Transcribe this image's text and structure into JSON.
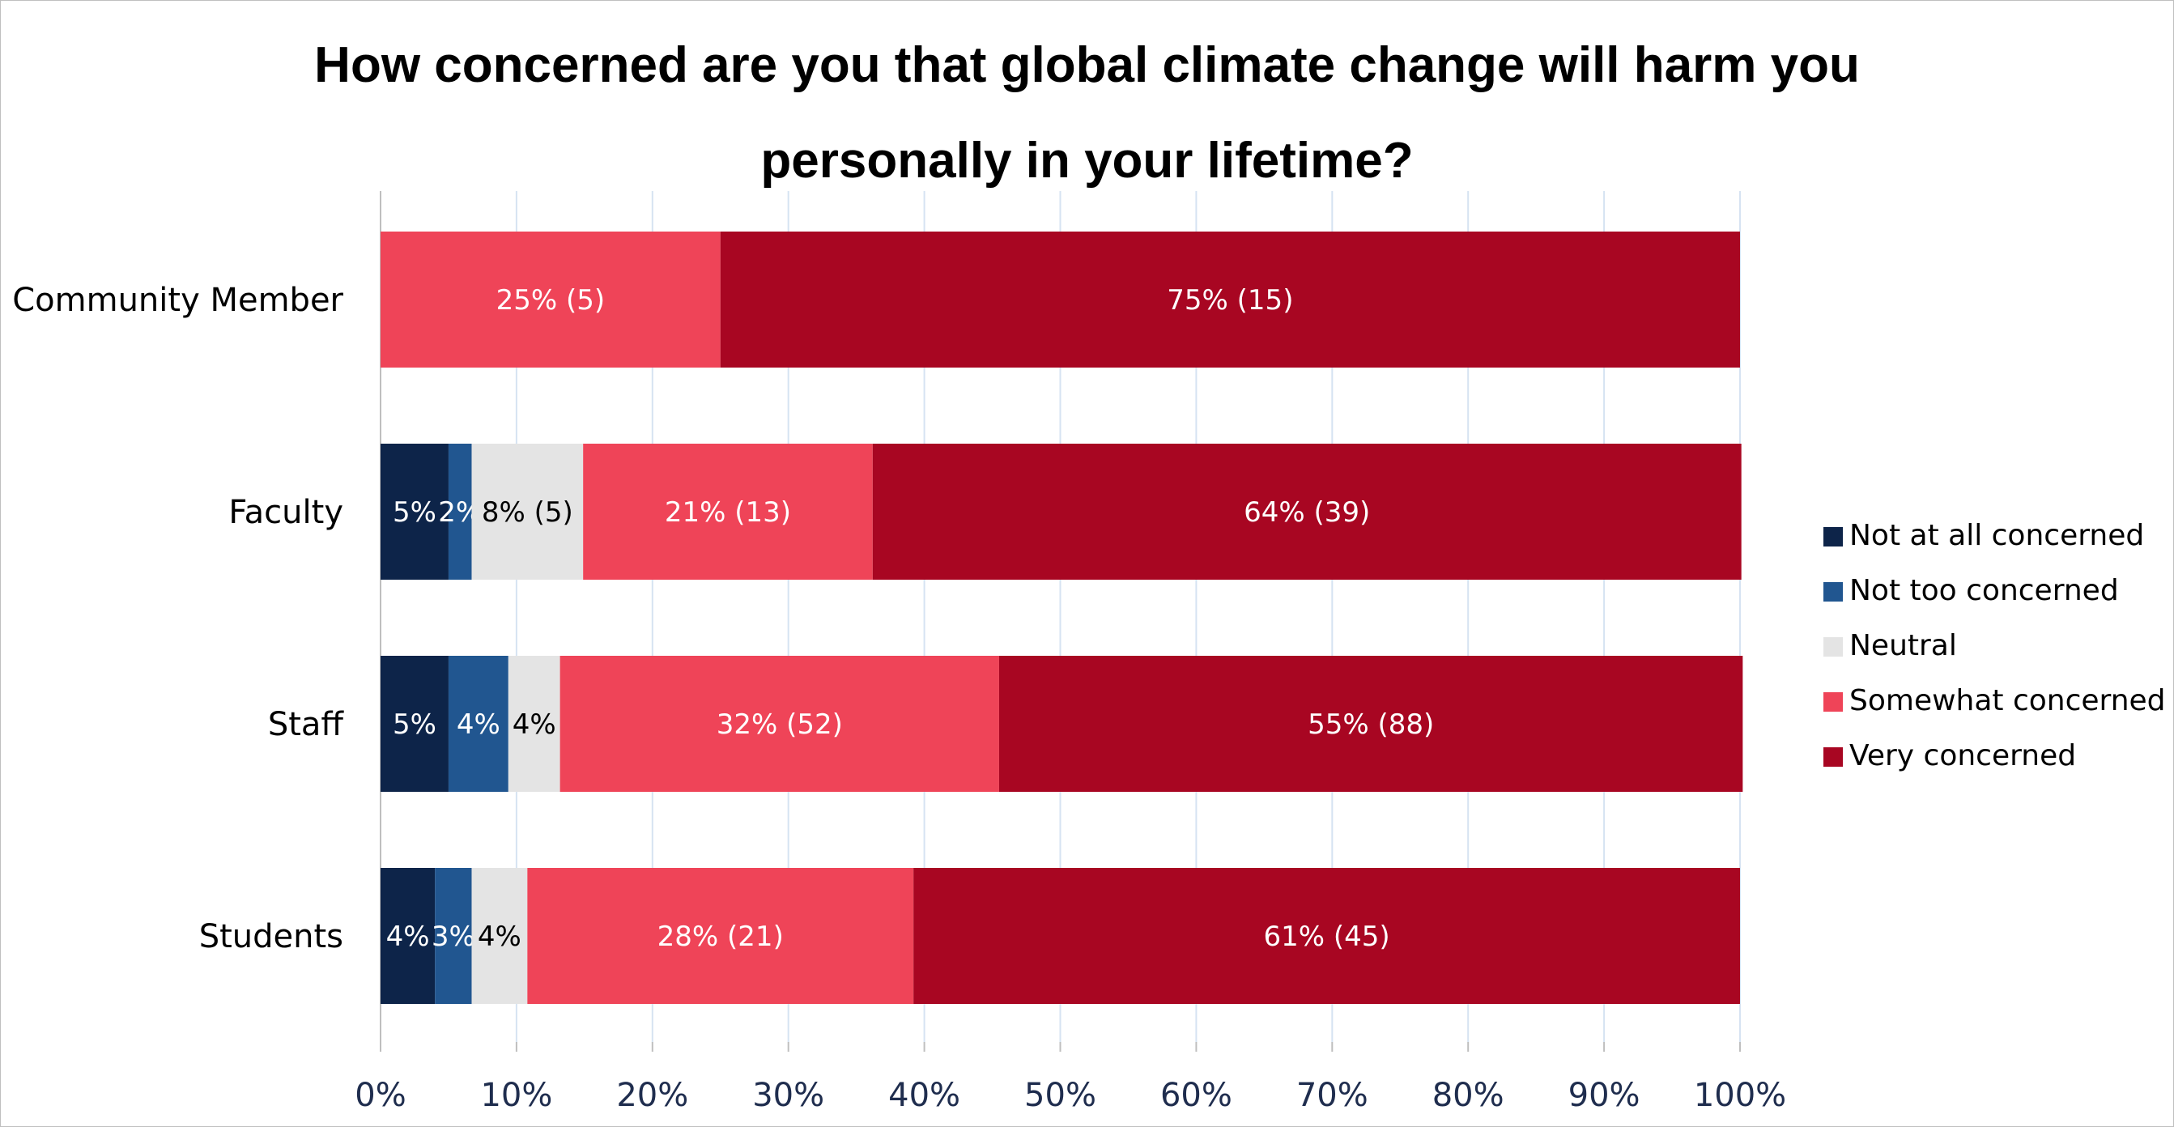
{
  "chart_data": {
    "type": "bar",
    "orientation": "horizontal",
    "stacked": "percent",
    "title_line1": "How concerned are you that global climate change will harm you",
    "title_line2": "personally in your lifetime?",
    "categories": [
      "Community Member",
      "Faculty",
      "Staff",
      "Students"
    ],
    "xlim": [
      0,
      100
    ],
    "x_ticks": [
      "0%",
      "10%",
      "20%",
      "30%",
      "40%",
      "50%",
      "60%",
      "70%",
      "80%",
      "90%",
      "100%"
    ],
    "grid": true,
    "legend_position": "right",
    "series": [
      {
        "name": "Not at all concerned",
        "color": "#0d2449",
        "label_color": "#ffffff",
        "values": [
          0,
          5,
          5,
          4
        ],
        "labels": [
          "",
          "5%",
          "5%",
          "4%"
        ]
      },
      {
        "name": "Not too concerned",
        "color": "#215690",
        "label_color": "#ffffff",
        "values": [
          0,
          1.7,
          4.4,
          2.7
        ],
        "labels": [
          "",
          "2%",
          "4%",
          "3%"
        ]
      },
      {
        "name": "Neutral",
        "color": "#e4e4e4",
        "label_color": "#000000",
        "values": [
          0,
          8.2,
          3.8,
          4.1
        ],
        "labels": [
          "",
          "8% (5)",
          "4%",
          "4%"
        ]
      },
      {
        "name": "Somewhat concerned",
        "color": "#ef4458",
        "label_color": "#ffffff",
        "values": [
          25,
          21.3,
          32.3,
          28.4
        ],
        "labels": [
          "25% (5)",
          "21% (13)",
          "32% (52)",
          "28% (21)"
        ]
      },
      {
        "name": "Very concerned",
        "color": "#a80622",
        "label_color": "#ffffff",
        "values": [
          75,
          63.9,
          54.7,
          60.8
        ],
        "labels": [
          "75% (15)",
          "64% (39)",
          "55% (88)",
          "61% (45)"
        ]
      }
    ]
  }
}
